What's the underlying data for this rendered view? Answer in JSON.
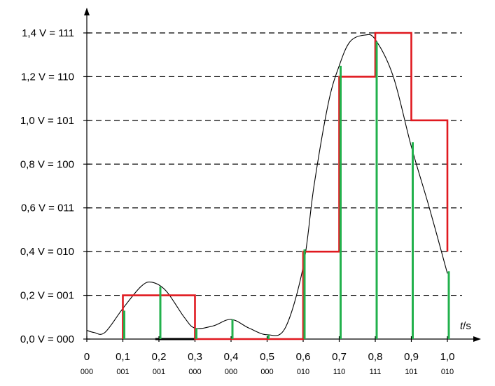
{
  "chart_data": {
    "type": "line",
    "title": "",
    "x_axis": {
      "label_symbol": "t",
      "label_unit": "/s",
      "range": [
        0,
        1.0
      ],
      "ticks": [
        0,
        0.1,
        0.2,
        0.3,
        0.4,
        0.5,
        0.6,
        0.7,
        0.8,
        0.9,
        1.0
      ],
      "tick_labels": [
        "0",
        "0,1",
        "0,2",
        "0,3",
        "0,4",
        "0,5",
        "0,6",
        "0,7",
        "0,8",
        "0,9",
        "1,0"
      ],
      "codes": [
        "000",
        "001",
        "001",
        "000",
        "000",
        "000",
        "010",
        "110",
        "111",
        "101",
        "010"
      ]
    },
    "y_axis": {
      "range": [
        0,
        1.4
      ],
      "ticks": [
        0,
        0.2,
        0.4,
        0.6,
        0.8,
        1.0,
        1.2,
        1.4
      ],
      "tick_labels": [
        "0,0 V = 000",
        "0,2 V = 001",
        "0,4 V = 010",
        "0,6 V = 011",
        "0,8 V = 100",
        "1,0 V = 101",
        "1,2 V = 110",
        "1,4 V = 111"
      ]
    },
    "grid": "dashed horizontal lines at every y tick",
    "colors": {
      "signal": "#000000",
      "samples": "#22b14c",
      "quantized": "#e0191f",
      "grid": "#000000"
    },
    "series": [
      {
        "kind": "analog-signal",
        "x": [
          0,
          0.02,
          0.05,
          0.1,
          0.15,
          0.18,
          0.22,
          0.27,
          0.3,
          0.35,
          0.4,
          0.45,
          0.5,
          0.55,
          0.6,
          0.63,
          0.67,
          0.7,
          0.73,
          0.77,
          0.8,
          0.85,
          0.9,
          0.95,
          1.0
        ],
        "y": [
          0.04,
          0.03,
          0.03,
          0.14,
          0.24,
          0.26,
          0.22,
          0.1,
          0.05,
          0.06,
          0.09,
          0.05,
          0.02,
          0.05,
          0.33,
          0.7,
          1.08,
          1.25,
          1.36,
          1.39,
          1.37,
          1.2,
          0.88,
          0.6,
          0.3
        ]
      },
      {
        "kind": "samples",
        "x": [
          0.1,
          0.2,
          0.3,
          0.4,
          0.5,
          0.6,
          0.7,
          0.8,
          0.9,
          1.0
        ],
        "y": [
          0.13,
          0.24,
          0.05,
          0.09,
          0.02,
          0.41,
          1.25,
          1.36,
          0.9,
          0.31
        ]
      },
      {
        "kind": "quantized-hold",
        "x": [
          0.1,
          0.2,
          0.3,
          0.4,
          0.5,
          0.6,
          0.7,
          0.8,
          0.9,
          1.0
        ],
        "y": [
          0.2,
          0.2,
          0.0,
          0.0,
          0.0,
          0.4,
          1.2,
          1.4,
          1.0,
          0.4
        ]
      }
    ]
  }
}
